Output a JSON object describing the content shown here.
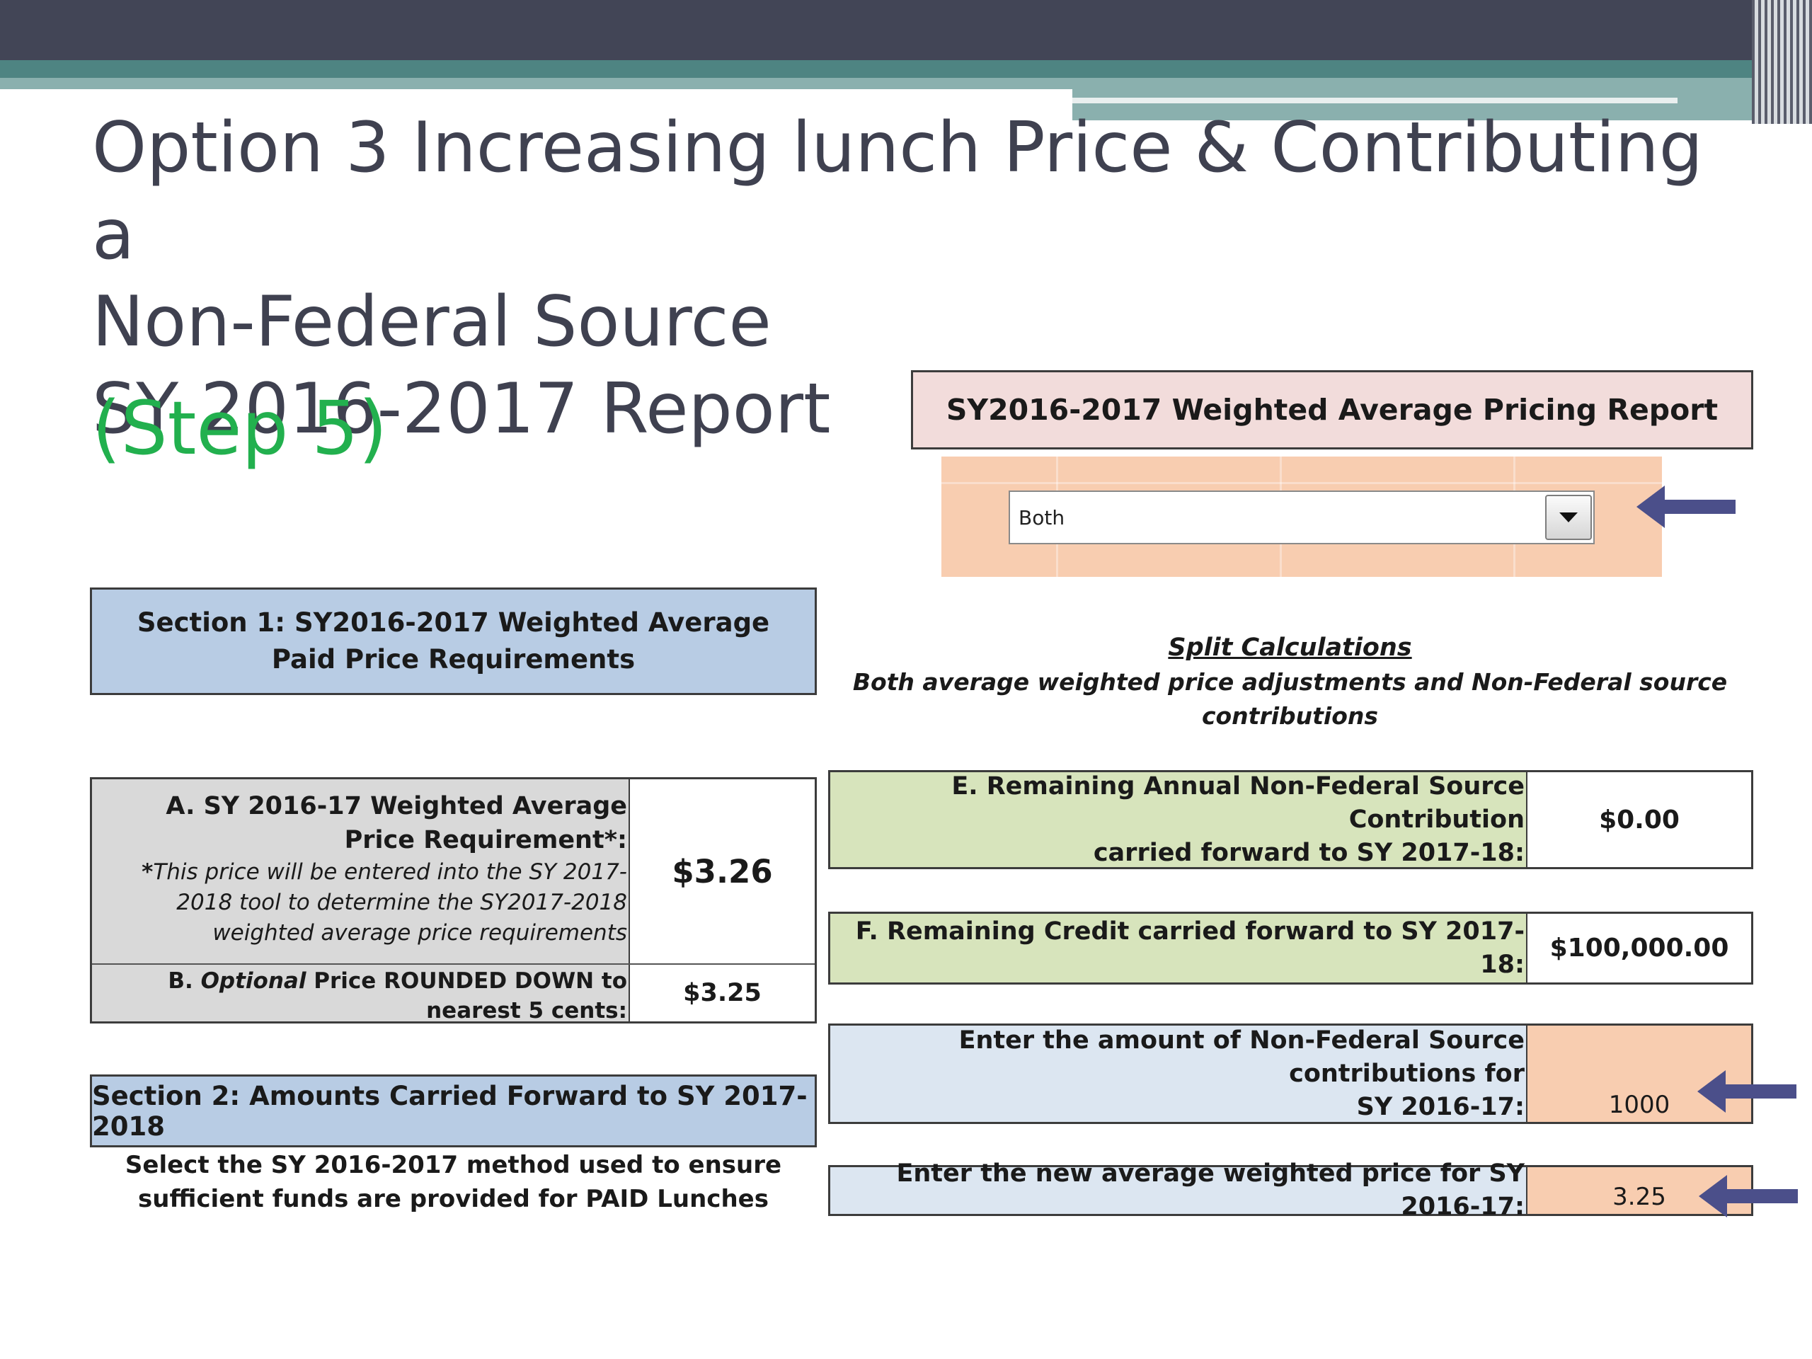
{
  "slide": {
    "title": "Option 3 Increasing lunch Price & Contributing a\nNon-Federal Source\nSY 2016-2017 Report",
    "step": "(Step 5)"
  },
  "report": {
    "title": "SY2016-2017 Weighted Average Pricing Report",
    "dropdown_value": "Both",
    "dropdown_icon": "chevron-down-icon"
  },
  "section1": {
    "title": "Section 1: SY2016-2017 Weighted Average Paid Price Requirements"
  },
  "split": {
    "title": "Split Calculations",
    "subtitle": "Both average weighted price adjustments and Non-Federal source contributions"
  },
  "rowA": {
    "label": "A.  SY 2016-17 Weighted Average Price Requirement*:",
    "note_star": "*",
    "note": "This price will be entered into the SY 2017-2018 tool to determine the SY2017-2018 weighted average price requirements",
    "value": "$3.26"
  },
  "rowB": {
    "prefix": "B.  ",
    "optional": "Optional",
    "label_rest": " Price ROUNDED DOWN to nearest 5 cents:",
    "value": "$3.25"
  },
  "section2": {
    "title": "Section 2: Amounts Carried Forward to SY 2017-2018",
    "subtitle": "Select the SY 2016-2017 method used to ensure sufficient funds are provided for PAID Lunches"
  },
  "rowE": {
    "label_line1": "E.  Remaining Annual Non-Federal Source Contribution",
    "label_line2": "carried forward to SY 2017-18:",
    "value": "$0.00"
  },
  "rowF": {
    "label": "F.  Remaining Credit carried forward to SY 2017-18:",
    "value": "$100,000.00"
  },
  "rowNonFed": {
    "label_line1": "Enter the amount of Non-Federal Source contributions for",
    "label_line2": "SY 2016-17:",
    "value": "1000"
  },
  "rowPrice": {
    "label": "Enter the new average weighted price for SY 2016-17:",
    "value": "3.25"
  },
  "colors": {
    "arrow": "#4b4f8a",
    "title_text": "#3f4150",
    "step_text": "#22b04e",
    "section_blue": "#b8cce4",
    "green_cell": "#d7e4bc",
    "input_peach": "#f8cdb0",
    "report_pink": "#f2dcdb"
  }
}
